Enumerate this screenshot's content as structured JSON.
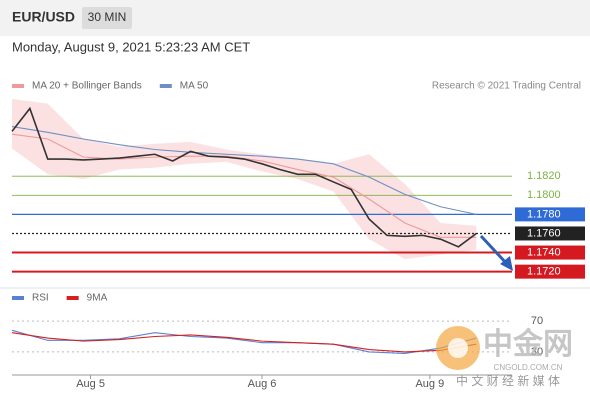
{
  "header": {
    "symbol": "EUR/USD",
    "timeframe": "30 MIN",
    "timestamp": "Monday, August 9, 2021 5:23:23 AM CET"
  },
  "watermark": {
    "brand": "中金网",
    "site": "CNGOLD.COM.CN",
    "slogan": "中 文 财 经 新 媒 体"
  },
  "chart_data": [
    {
      "type": "line",
      "credit": "Research © 2021 Trading Central",
      "xlim": [
        0,
        140
      ],
      "ylim": [
        1.1706,
        1.1903
      ],
      "band": {
        "color": "#fbd9dc",
        "x": [
          0,
          10,
          20,
          30,
          40,
          50,
          60,
          70,
          80,
          90,
          100,
          110,
          120,
          130
        ],
        "upper": [
          1.1901,
          1.1896,
          1.1859,
          1.1851,
          1.1854,
          1.1856,
          1.1848,
          1.1843,
          1.1838,
          1.1833,
          1.1843,
          1.1812,
          1.1771,
          1.1768
        ],
        "lower": [
          1.1849,
          1.1822,
          1.1817,
          1.1827,
          1.1829,
          1.1833,
          1.1835,
          1.1825,
          1.1817,
          1.1804,
          1.1754,
          1.1733,
          1.1738,
          1.1743
        ]
      },
      "series": [
        {
          "name": "MA 20 + Bollinger Bands",
          "color": "#ef9a9a",
          "x": [
            0,
            10,
            20,
            30,
            40,
            50,
            60,
            70,
            80,
            90,
            100,
            110,
            120,
            130
          ],
          "values": [
            1.1864,
            1.1859,
            1.184,
            1.1838,
            1.184,
            1.1841,
            1.1841,
            1.1836,
            1.1827,
            1.1819,
            1.1796,
            1.1771,
            1.1756,
            1.1756
          ]
        },
        {
          "name": "MA 50",
          "color": "#6f8fc4",
          "x": [
            0,
            10,
            20,
            30,
            40,
            50,
            60,
            70,
            80,
            90,
            100,
            110,
            120,
            130
          ],
          "values": [
            1.1872,
            1.1866,
            1.1859,
            1.1853,
            1.1848,
            1.1845,
            1.1843,
            1.1841,
            1.1838,
            1.1833,
            1.1819,
            1.1801,
            1.1788,
            1.178
          ]
        },
        {
          "color": "#333333",
          "x": [
            0,
            5,
            10,
            15,
            20,
            25,
            30,
            35,
            40,
            45,
            50,
            55,
            60,
            65,
            70,
            75,
            80,
            85,
            90,
            95,
            100,
            105,
            110,
            115,
            120,
            125,
            130
          ],
          "values": [
            1.1867,
            1.1891,
            1.1838,
            1.1838,
            1.1837,
            1.1838,
            1.1839,
            1.1841,
            1.1843,
            1.1836,
            1.1846,
            1.1841,
            1.184,
            1.1838,
            1.1833,
            1.1827,
            1.1822,
            1.1822,
            1.1814,
            1.1806,
            1.1775,
            1.1758,
            1.1757,
            1.1758,
            1.1754,
            1.1746,
            1.176
          ]
        }
      ],
      "levels": [
        {
          "value": 1.182,
          "label": "1.1820",
          "color": "#7cb342",
          "style": "thin",
          "filled": false
        },
        {
          "value": 1.18,
          "label": "1.1800",
          "color": "#7cb342",
          "style": "thin",
          "filled": false
        },
        {
          "value": 1.178,
          "label": "1.1780",
          "color": "#2f6bd6",
          "style": "solid",
          "filled": true
        },
        {
          "value": 1.176,
          "label": "1.1760",
          "color": "#222222",
          "style": "dotted",
          "filled": true
        },
        {
          "value": 1.174,
          "label": "1.1740",
          "color": "#d41920",
          "style": "thick",
          "filled": true
        },
        {
          "value": 1.172,
          "label": "1.1720",
          "color": "#d41920",
          "style": "thick",
          "filled": true
        }
      ]
    },
    {
      "type": "line",
      "xlim": [
        0,
        140
      ],
      "ylim": [
        0,
        100
      ],
      "yticks": [
        30,
        70
      ],
      "xticks": [
        {
          "value": 22,
          "label": "Aug 5"
        },
        {
          "value": 70,
          "label": "Aug 6"
        },
        {
          "value": 117,
          "label": "Aug 9"
        }
      ],
      "series": [
        {
          "name": "RSI",
          "color": "#5b7fd4",
          "x": [
            0,
            10,
            20,
            30,
            40,
            50,
            60,
            70,
            80,
            90,
            100,
            110,
            120,
            130
          ],
          "values": [
            58,
            45,
            45,
            47,
            55,
            50,
            48,
            42,
            42,
            40,
            30,
            28,
            35,
            48
          ]
        },
        {
          "name": "9MA",
          "color": "#d42020",
          "x": [
            0,
            10,
            20,
            30,
            40,
            50,
            60,
            70,
            80,
            90,
            100,
            110,
            120,
            130
          ],
          "values": [
            55,
            48,
            44,
            46,
            50,
            52,
            49,
            44,
            42,
            40,
            33,
            30,
            32,
            40
          ]
        }
      ]
    }
  ]
}
